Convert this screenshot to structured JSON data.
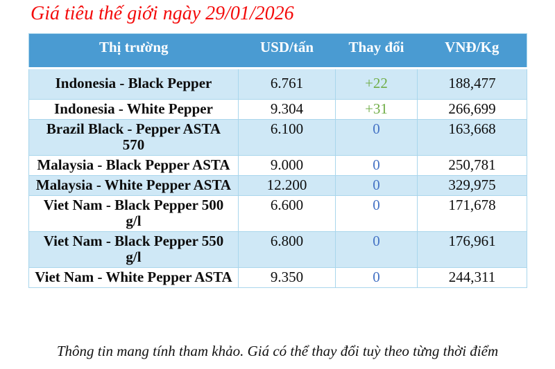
{
  "title": "Giá tiêu thế giới ngày 29/01/2026",
  "table": {
    "headers": [
      "Thị trường",
      "USD/tấn",
      "Thay đổi",
      "VNĐ/Kg"
    ],
    "rows": [
      {
        "market": "Indonesia - Black Pepper",
        "usd": "6.761",
        "change": "+22",
        "change_type": "up",
        "vnd": "188,477"
      },
      {
        "market": "Indonesia - White Pepper",
        "usd": "9.304",
        "change": "+31",
        "change_type": "up",
        "vnd": "266,699"
      },
      {
        "market": "Brazil Black - Pepper ASTA 570",
        "usd": "6.100",
        "change": "0",
        "change_type": "zero",
        "vnd": "163,668"
      },
      {
        "market": "Malaysia - Black Pepper ASTA",
        "usd": "9.000",
        "change": "0",
        "change_type": "zero",
        "vnd": "250,781"
      },
      {
        "market": "Malaysia - White Pepper ASTA",
        "usd": "12.200",
        "change": "0",
        "change_type": "zero",
        "vnd": "329,975"
      },
      {
        "market": "Viet Nam - Black Pepper 500 g/l",
        "usd": "6.600",
        "change": "0",
        "change_type": "zero",
        "vnd": "171,678"
      },
      {
        "market": "Viet Nam - Black Pepper 550 g/l",
        "usd": "6.800",
        "change": "0",
        "change_type": "zero",
        "vnd": "176,961"
      },
      {
        "market": "Viet Nam - White Pepper ASTA",
        "usd": "9.350",
        "change": "0",
        "change_type": "zero",
        "vnd": "244,311"
      }
    ]
  },
  "footer": "Thông tin mang tính tham khảo. Giá có thể thay đổi tuỳ theo từng thời điểm",
  "colors": {
    "title_color": "#f40b0b",
    "header_bg": "#4a9bd2",
    "header_text": "#ffffff",
    "row_alt_bg": "#cfe8f6",
    "border_color": "#a9d6ec",
    "change_up": "#70ad47",
    "change_zero": "#4472c4"
  }
}
